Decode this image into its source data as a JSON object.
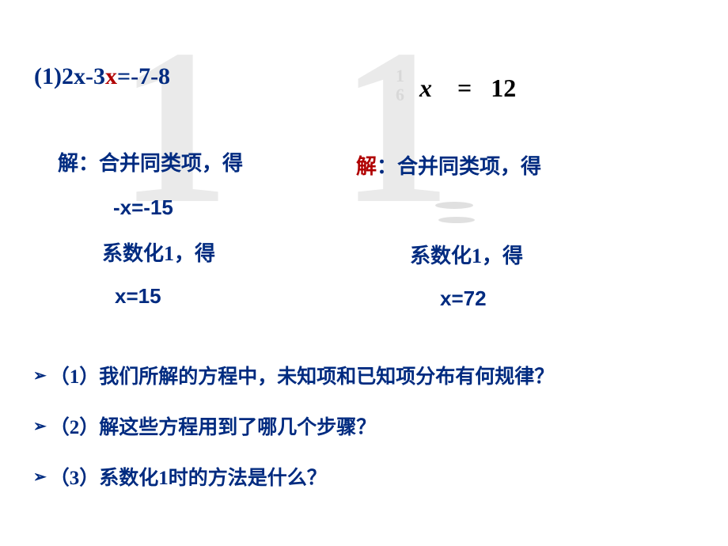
{
  "watermarks": {
    "big1": "1",
    "big2": "1",
    "frac_top": "1",
    "frac_bot": "6"
  },
  "colors": {
    "navy": "#002b80",
    "red": "#b00000",
    "black": "#000000",
    "background": "#ffffff"
  },
  "equation1": {
    "prefix": "(1)2x-3",
    "red_part": "x",
    "suffix": "=-7-8"
  },
  "equation2": {
    "x": "x",
    "eq": "=",
    "val": "12"
  },
  "solution_left": {
    "line1": "解：合并同类项，得",
    "line2": "-x=-15",
    "line3": "系数化1，得",
    "line4": "x=15"
  },
  "solution_right": {
    "jie_red": "解",
    "line1_rest": "：合并同类项，得",
    "line3": "系数化1，得",
    "line4": "x=72"
  },
  "questions": {
    "q1": "（1）我们所解的方程中，未知项和已知项分布有何规律？",
    "q2": "（2）解这些方程用到了哪几个步骤？",
    "q3": "（3）系数化1时的方法是什么？"
  }
}
